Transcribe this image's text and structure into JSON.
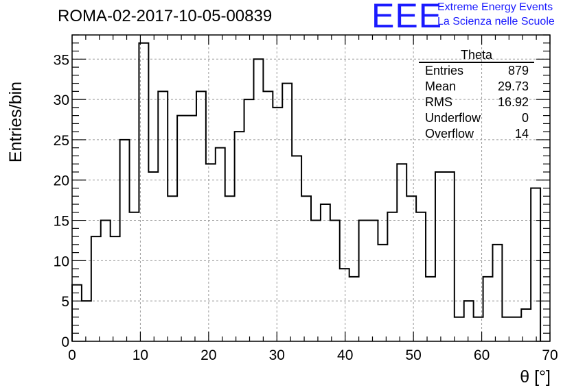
{
  "header": {
    "run_title": "ROMA-02-2017-10-05-00839",
    "logo_text": "EEE",
    "logo_line1": "Extreme Energy Events",
    "logo_line2": "La Scienza nelle Scuole"
  },
  "stats": {
    "name": "Theta",
    "rows": [
      {
        "key": "Entries",
        "value": "879"
      },
      {
        "key": "Mean",
        "value": "29.73"
      },
      {
        "key": "RMS",
        "value": "16.92"
      },
      {
        "key": "Underflow",
        "value": "0"
      },
      {
        "key": "Overflow",
        "value": "14"
      }
    ]
  },
  "colors": {
    "line": "#000000",
    "grid": "#9a9a9a",
    "logo": "#1a1aff"
  },
  "chart_data": {
    "type": "histogram",
    "title": "ROMA-02-2017-10-05-00839",
    "xlabel": "θ [°]",
    "ylabel": "Entries/bin",
    "xlim": [
      0,
      70
    ],
    "ylim": [
      0,
      38
    ],
    "grid": true,
    "bin_width": 1.4,
    "x_ticks": [
      0,
      10,
      20,
      30,
      40,
      50,
      60,
      70
    ],
    "y_ticks": [
      0,
      5,
      10,
      15,
      20,
      25,
      30,
      35
    ],
    "bin_edges": [
      0,
      1.4,
      2.8,
      4.2,
      5.6,
      7.0,
      8.4,
      9.8,
      11.2,
      12.6,
      14.0,
      15.4,
      16.8,
      18.2,
      19.6,
      21.0,
      22.4,
      23.8,
      25.2,
      26.6,
      28.0,
      29.4,
      30.8,
      32.2,
      33.6,
      35.0,
      36.4,
      37.8,
      39.2,
      40.6,
      42.0,
      43.4,
      44.8,
      46.2,
      47.6,
      49.0,
      50.4,
      51.8,
      53.2,
      54.6,
      56.0,
      57.4,
      58.8,
      60.2,
      61.6,
      63.0,
      64.4,
      65.8,
      67.2,
      68.6
    ],
    "counts": [
      7,
      5,
      13,
      15,
      13,
      25,
      16,
      37,
      21,
      31,
      18,
      28,
      28,
      31,
      22,
      24,
      18,
      26,
      30,
      35,
      31,
      29,
      32,
      23,
      18,
      15,
      17,
      15,
      9,
      8,
      15,
      15,
      12,
      16,
      22,
      18,
      16,
      8,
      21,
      21,
      3,
      5,
      3,
      8,
      12,
      3,
      3,
      4,
      19
    ]
  }
}
